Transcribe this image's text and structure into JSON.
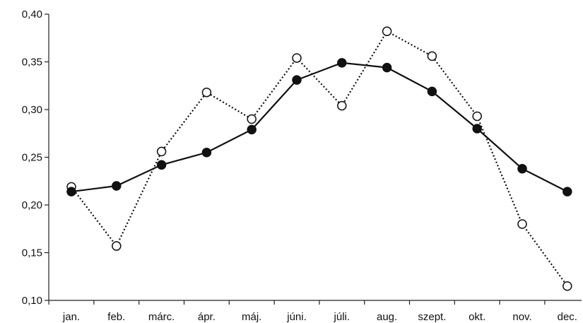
{
  "chart_data": {
    "type": "line",
    "title": "",
    "xlabel": "",
    "ylabel": "",
    "categories": [
      "jan.",
      "feb.",
      "márc.",
      "ápr.",
      "máj.",
      "júni.",
      "júli.",
      "aug.",
      "szept.",
      "okt.",
      "nov.",
      "dec."
    ],
    "y_ticks": [
      "0,10",
      "0,15",
      "0,20",
      "0,25",
      "0,30",
      "0,35",
      "0,40"
    ],
    "ylim": [
      0.1,
      0.4
    ],
    "grid": false,
    "legend": "none",
    "series": [
      {
        "marker": "filled-circle",
        "line_style": "solid",
        "color": "#111111",
        "values": [
          0.214,
          0.22,
          0.242,
          0.255,
          0.279,
          0.331,
          0.349,
          0.344,
          0.319,
          0.28,
          0.238,
          0.214
        ]
      },
      {
        "marker": "open-circle",
        "line_style": "dotted",
        "color": "#111111",
        "values": [
          0.219,
          0.157,
          0.256,
          0.318,
          0.29,
          0.354,
          0.304,
          0.382,
          0.356,
          0.293,
          0.18,
          0.115
        ]
      }
    ]
  }
}
